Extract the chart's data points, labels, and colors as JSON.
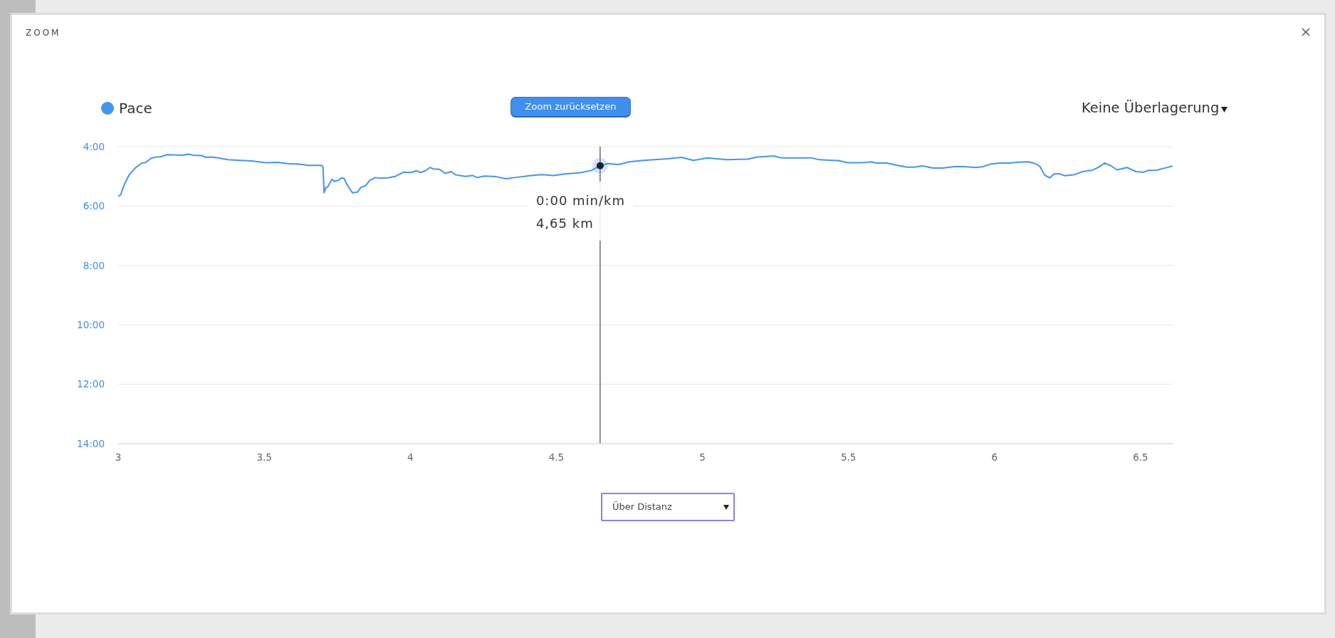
{
  "chart_data": {
    "type": "line",
    "title": "ZOOM",
    "annotations": [
      "Zoom zurücksetzen",
      "Keine Überlagerung",
      "Über Distanz",
      {
        "text": "0:00 min/km",
        "x": 4.65,
        "y": 4.64
      }
    ],
    "x": [
      3,
      3.008,
      3.022,
      3.038,
      3.059,
      3.081,
      3.093,
      3.111,
      3.128,
      3.144,
      3.168,
      3.205,
      3.221,
      3.241,
      3.258,
      3.286,
      3.301,
      3.319,
      3.343,
      3.376,
      3.416,
      3.457,
      3.506,
      3.546,
      3.579,
      3.62,
      3.652,
      3.697,
      3.701,
      3.705,
      3.711,
      3.717,
      3.732,
      3.74,
      3.754,
      3.766,
      3.774,
      3.782,
      3.792,
      3.802,
      3.819,
      3.831,
      3.846,
      3.862,
      3.88,
      3.896,
      3.924,
      3.949,
      3.977,
      4.002,
      4.022,
      4.034,
      4.05,
      4.067,
      4.079,
      4.099,
      4.12,
      4.14,
      4.156,
      4.189,
      4.213,
      4.229,
      4.254,
      4.294,
      4.327,
      4.359,
      4.408,
      4.449,
      4.49,
      4.53,
      4.579,
      4.62,
      4.65,
      4.676,
      4.713,
      4.75,
      4.798,
      4.88,
      4.929,
      4.969,
      5.018,
      5.083,
      5.156,
      5.188,
      5.245,
      5.27,
      5.376,
      5.4,
      5.449,
      5.465,
      5.498,
      5.546,
      5.579,
      5.595,
      5.632,
      5.668,
      5.701,
      5.725,
      5.754,
      5.79,
      5.823,
      5.863,
      5.896,
      5.937,
      5.961,
      5.985,
      6.018,
      6.05,
      6.083,
      6.116,
      6.14,
      6.156,
      6.171,
      6.189,
      6.205,
      6.221,
      6.241,
      6.27,
      6.302,
      6.335,
      6.359,
      6.376,
      6.396,
      6.42,
      6.453,
      6.485,
      6.51,
      6.526,
      6.555,
      6.575,
      6.61
    ],
    "series": [
      {
        "name": "Pace",
        "color": "#4196f2",
        "values": [
          5.67,
          5.63,
          5.25,
          4.94,
          4.71,
          4.55,
          4.54,
          4.4,
          4.35,
          4.34,
          4.27,
          4.28,
          4.29,
          4.25,
          4.29,
          4.3,
          4.36,
          4.35,
          4.38,
          4.44,
          4.46,
          4.48,
          4.54,
          4.53,
          4.57,
          4.59,
          4.63,
          4.63,
          4.68,
          5.55,
          5.37,
          5.36,
          5.1,
          5.17,
          5.13,
          5.05,
          5.08,
          5.25,
          5.41,
          5.55,
          5.53,
          5.37,
          5.32,
          5.13,
          5.04,
          5.06,
          5.05,
          5.0,
          4.86,
          4.87,
          4.81,
          4.87,
          4.82,
          4.7,
          4.75,
          4.76,
          4.9,
          4.84,
          4.95,
          5.0,
          4.97,
          5.04,
          4.99,
          5.01,
          5.08,
          5.04,
          4.98,
          4.94,
          4.97,
          4.92,
          4.88,
          4.8,
          4.64,
          4.57,
          4.6,
          4.51,
          4.46,
          4.41,
          4.36,
          4.46,
          4.38,
          4.44,
          4.42,
          4.35,
          4.31,
          4.38,
          4.38,
          4.44,
          4.46,
          4.47,
          4.54,
          4.54,
          4.51,
          4.55,
          4.55,
          4.63,
          4.69,
          4.69,
          4.65,
          4.72,
          4.72,
          4.67,
          4.67,
          4.7,
          4.67,
          4.59,
          4.55,
          4.55,
          4.52,
          4.51,
          4.57,
          4.67,
          4.95,
          5.05,
          4.91,
          4.91,
          4.98,
          4.95,
          4.84,
          4.79,
          4.68,
          4.55,
          4.63,
          4.78,
          4.7,
          4.84,
          4.86,
          4.8,
          4.79,
          4.74,
          4.65
        ]
      },
      {
        "type": "scatter",
        "x": [
          4.65
        ],
        "values": [
          4.64
        ],
        "color": "#222222",
        "marker": "circle"
      }
    ],
    "xlim": [
      3,
      6.61
    ],
    "xticks": [
      3,
      3.5,
      4,
      4.5,
      5,
      5.5,
      6,
      6.5
    ],
    "ylim": [
      14,
      4
    ],
    "yticks": [
      {
        "value": 4,
        "label": "4:00"
      },
      {
        "value": 6,
        "label": "6:00"
      },
      {
        "value": 8,
        "label": "8:00"
      },
      {
        "value": 10,
        "label": "10:00"
      },
      {
        "value": 12,
        "label": "12:00"
      },
      {
        "value": 14,
        "label": "14:00"
      }
    ],
    "grid": "y",
    "legend": "top left",
    "marker": "none",
    "ref_lines": [
      {
        "axis": "x",
        "value": 4.65,
        "label": "4,65 km",
        "color": "#222222"
      }
    ]
  }
}
